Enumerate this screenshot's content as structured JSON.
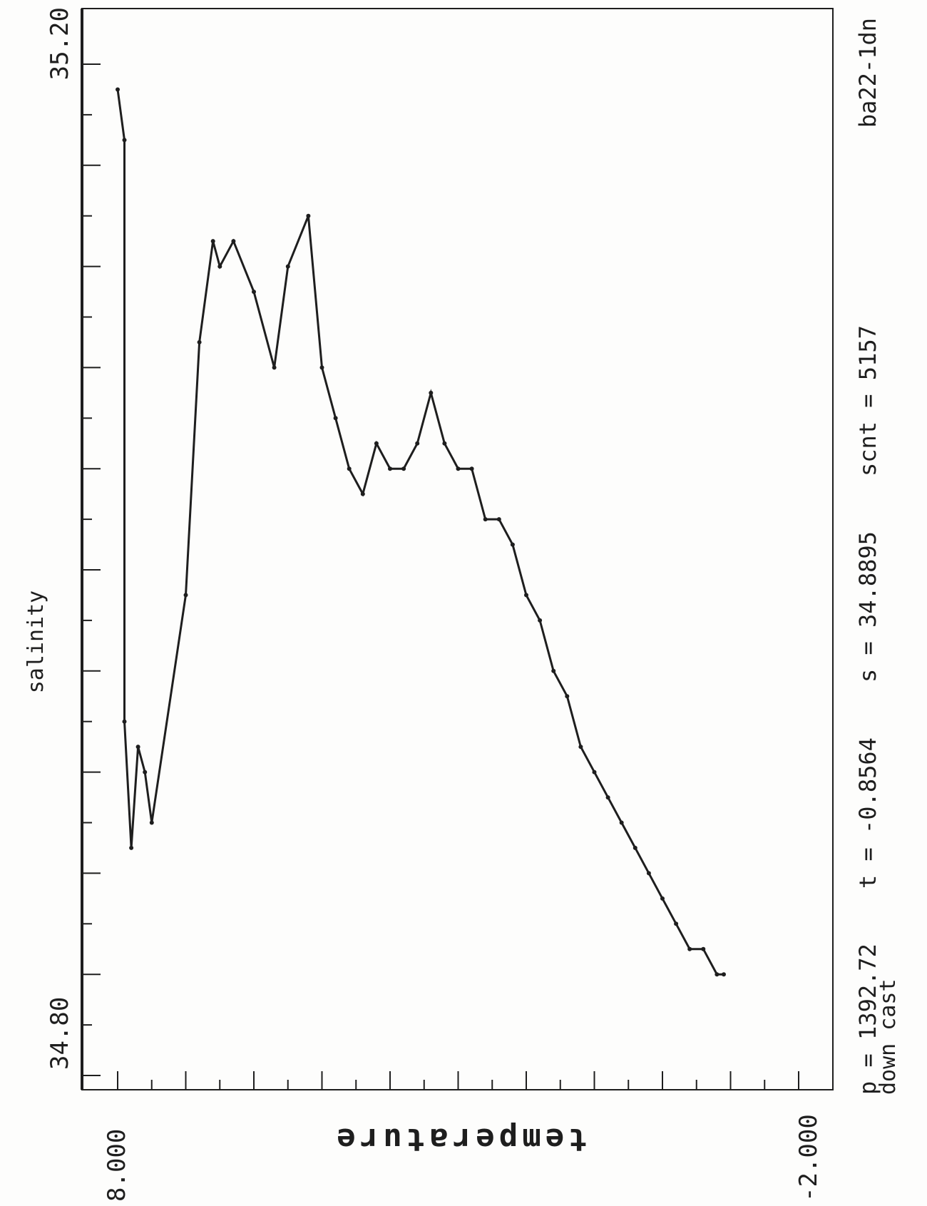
{
  "chart_data": {
    "type": "line",
    "title": "",
    "ylabel": "salinity",
    "xlabel": "temperature",
    "xlim": [
      8.0,
      -2.0
    ],
    "ylim": [
      34.8,
      35.2
    ],
    "x_tick_labels": [
      "8.000",
      "-2.000"
    ],
    "y_tick_labels": [
      "34.80",
      "35.20"
    ],
    "grid": false,
    "series": [
      {
        "x": [
          8.0,
          7.9,
          7.9,
          7.8,
          7.7,
          7.6,
          7.5,
          7.0,
          6.8,
          6.6,
          6.5,
          6.3,
          6.0,
          5.7,
          5.5,
          5.2,
          5.0,
          4.8,
          4.6,
          4.4,
          4.2,
          4.0,
          3.8,
          3.6,
          3.4,
          3.2,
          3.0,
          2.8,
          2.6,
          2.4,
          2.2,
          2.0,
          1.8,
          1.6,
          1.4,
          1.2,
          1.0,
          0.8,
          0.6,
          0.4,
          0.2,
          0.0,
          -0.2,
          -0.4,
          -0.6,
          -0.8,
          -0.9
        ],
        "y": [
          35.19,
          35.17,
          34.94,
          34.89,
          34.93,
          34.92,
          34.9,
          34.99,
          35.09,
          35.13,
          35.12,
          35.13,
          35.11,
          35.08,
          35.12,
          35.14,
          35.08,
          35.06,
          35.04,
          35.03,
          35.05,
          35.04,
          35.04,
          35.05,
          35.07,
          35.05,
          35.04,
          35.04,
          35.02,
          35.02,
          35.01,
          34.99,
          34.98,
          34.96,
          34.95,
          34.93,
          34.92,
          34.91,
          34.9,
          34.89,
          34.88,
          34.87,
          34.86,
          34.85,
          34.85,
          34.84,
          34.84
        ]
      }
    ]
  },
  "footer": {
    "readout": "p = 1392.72    t = -0.8564    s = 34.8895    scnt = 5157",
    "cast": "down cast",
    "station": "ba22-1dn"
  }
}
